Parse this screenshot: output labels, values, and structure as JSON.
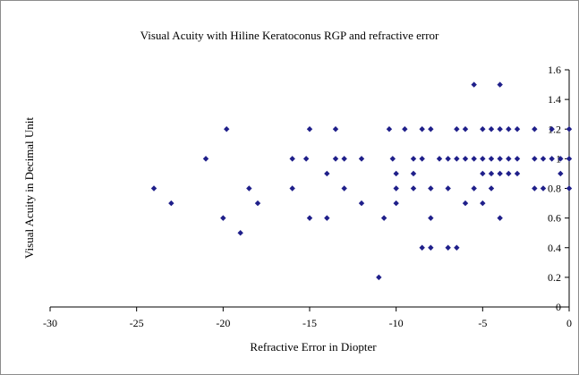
{
  "chart_data": {
    "type": "scatter",
    "title": "Visual Acuity with Hiline Keratoconus RGP and refractive error",
    "xlabel": "Refractive Error in Diopter",
    "ylabel": "Visual Acuity in Decimal Unit",
    "xlim": [
      -30,
      0
    ],
    "ylim": [
      0,
      1.6
    ],
    "x_ticks": [
      -30,
      -25,
      -20,
      -15,
      -10,
      -5,
      0
    ],
    "x_tick_labels": [
      "-30",
      "-25",
      "-20",
      "-15",
      "-10",
      "-5",
      "0"
    ],
    "y_ticks": [
      0,
      0.2,
      0.4,
      0.6,
      0.8,
      1,
      1.2,
      1.4,
      1.6
    ],
    "y_tick_labels": [
      "0",
      "0.2",
      "0.4",
      "0.6",
      "0.8",
      "1",
      "1.2",
      "1.4",
      "1.6"
    ],
    "grid": false,
    "legend": "none",
    "marker_color": "#1f1f8a",
    "points": [
      [
        -24.0,
        0.8
      ],
      [
        -23.0,
        0.7
      ],
      [
        -21.0,
        1.0
      ],
      [
        -20.0,
        0.6
      ],
      [
        -19.8,
        1.2
      ],
      [
        -19.0,
        0.5
      ],
      [
        -18.5,
        0.8
      ],
      [
        -18.0,
        0.7
      ],
      [
        -16.0,
        1.0
      ],
      [
        -16.0,
        0.8
      ],
      [
        -15.2,
        1.0
      ],
      [
        -15.0,
        1.2
      ],
      [
        -15.0,
        0.6
      ],
      [
        -14.0,
        0.9
      ],
      [
        -14.0,
        0.6
      ],
      [
        -13.5,
        1.2
      ],
      [
        -13.5,
        1.0
      ],
      [
        -13.0,
        0.8
      ],
      [
        -13.0,
        1.0
      ],
      [
        -12.0,
        0.7
      ],
      [
        -12.0,
        1.0
      ],
      [
        -11.0,
        0.2
      ],
      [
        -10.7,
        0.6
      ],
      [
        -10.4,
        1.2
      ],
      [
        -10.2,
        1.0
      ],
      [
        -10.0,
        0.8
      ],
      [
        -10.0,
        0.9
      ],
      [
        -10.0,
        0.7
      ],
      [
        -9.5,
        1.2
      ],
      [
        -9.0,
        1.0
      ],
      [
        -9.0,
        0.9
      ],
      [
        -9.0,
        0.8
      ],
      [
        -8.5,
        0.4
      ],
      [
        -8.5,
        1.2
      ],
      [
        -8.5,
        1.0
      ],
      [
        -8.0,
        0.4
      ],
      [
        -8.0,
        0.6
      ],
      [
        -8.0,
        0.8
      ],
      [
        -8.0,
        1.2
      ],
      [
        -7.5,
        1.0
      ],
      [
        -7.0,
        0.4
      ],
      [
        -7.0,
        0.8
      ],
      [
        -7.0,
        1.0
      ],
      [
        -6.5,
        0.4
      ],
      [
        -6.5,
        1.2
      ],
      [
        -6.5,
        1.0
      ],
      [
        -6.0,
        0.7
      ],
      [
        -6.0,
        1.2
      ],
      [
        -6.0,
        1.0
      ],
      [
        -5.5,
        1.5
      ],
      [
        -5.5,
        0.8
      ],
      [
        -5.5,
        1.0
      ],
      [
        -5.0,
        1.2
      ],
      [
        -5.0,
        1.0
      ],
      [
        -5.0,
        0.9
      ],
      [
        -5.0,
        0.7
      ],
      [
        -4.5,
        1.2
      ],
      [
        -4.5,
        1.0
      ],
      [
        -4.5,
        0.9
      ],
      [
        -4.5,
        0.8
      ],
      [
        -4.0,
        1.5
      ],
      [
        -4.0,
        1.2
      ],
      [
        -4.0,
        1.0
      ],
      [
        -4.0,
        0.9
      ],
      [
        -4.0,
        0.6
      ],
      [
        -3.5,
        1.2
      ],
      [
        -3.5,
        1.0
      ],
      [
        -3.5,
        0.9
      ],
      [
        -3.0,
        1.2
      ],
      [
        -3.0,
        1.0
      ],
      [
        -3.0,
        0.9
      ],
      [
        -2.0,
        1.2
      ],
      [
        -2.0,
        1.0
      ],
      [
        -2.0,
        0.8
      ],
      [
        -1.5,
        1.0
      ],
      [
        -1.5,
        0.8
      ],
      [
        -1.0,
        1.0
      ],
      [
        -1.0,
        1.2
      ],
      [
        -0.5,
        0.9
      ],
      [
        -0.5,
        1.0
      ],
      [
        0.0,
        1.2
      ],
      [
        0.0,
        0.8
      ],
      [
        0.0,
        1.0
      ]
    ]
  }
}
